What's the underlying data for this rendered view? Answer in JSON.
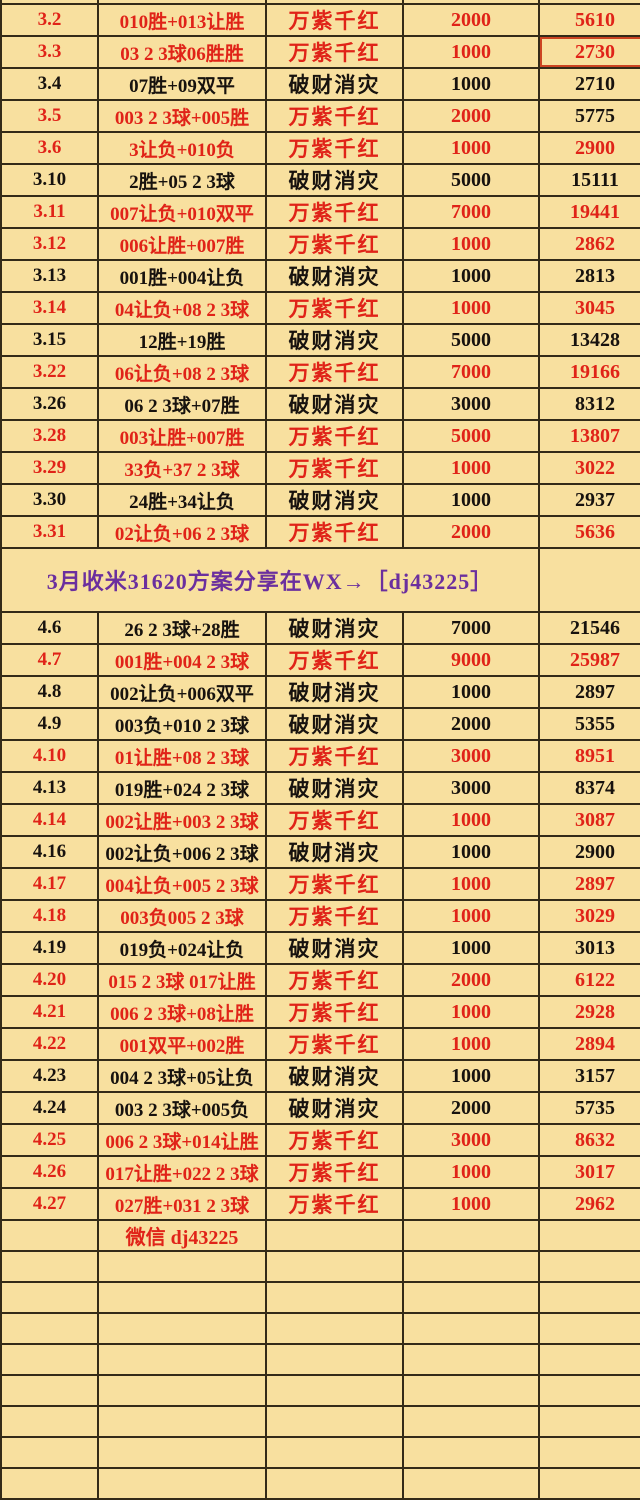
{
  "colors": {
    "background": "#f8e09f",
    "grid_line": "#332a18",
    "win_text": "#e02318",
    "loss_text": "#17120e",
    "banner_text": "#6b2f9e",
    "highlight_border": "#cc4422"
  },
  "table": {
    "win_label": "万紫千红",
    "loss_label": "破财消灾",
    "sections": [
      {
        "kind": "rows",
        "rows": [
          {
            "date": "3.2",
            "plan": "010胜+013让胜",
            "result": "万紫千红",
            "stake": "2000",
            "payout": "5610",
            "color": "red"
          },
          {
            "date": "3.3",
            "plan": "03 2 3球06胜胜",
            "result": "万紫千红",
            "stake": "1000",
            "payout": "2730",
            "color": "red",
            "payout_highlight": true
          },
          {
            "date": "3.4",
            "plan": "07胜+09双平",
            "result": "破财消灾",
            "stake": "1000",
            "payout": "2710",
            "color": "black"
          },
          {
            "date": "3.5",
            "plan": "003 2 3球+005胜",
            "result": "万紫千红",
            "stake": "2000",
            "payout": "5775",
            "color": "red",
            "payout_color": "black"
          },
          {
            "date": "3.6",
            "plan": "3让负+010负",
            "result": "万紫千红",
            "stake": "1000",
            "payout": "2900",
            "color": "red"
          },
          {
            "date": "3.10",
            "plan": "2胜+05 2 3球",
            "result": "破财消灾",
            "stake": "5000",
            "payout": "15111",
            "color": "black"
          },
          {
            "date": "3.11",
            "plan": "007让负+010双平",
            "result": "万紫千红",
            "stake": "7000",
            "payout": "19441",
            "color": "red"
          },
          {
            "date": "3.12",
            "plan": "006让胜+007胜",
            "result": "万紫千红",
            "stake": "1000",
            "payout": "2862",
            "color": "red"
          },
          {
            "date": "3.13",
            "plan": "001胜+004让负",
            "result": "破财消灾",
            "stake": "1000",
            "payout": "2813",
            "color": "black"
          },
          {
            "date": "3.14",
            "plan": "04让负+08 2 3球",
            "result": "万紫千红",
            "stake": "1000",
            "payout": "3045",
            "color": "red"
          },
          {
            "date": "3.15",
            "plan": "12胜+19胜",
            "result": "破财消灾",
            "stake": "5000",
            "payout": "13428",
            "color": "black"
          },
          {
            "date": "3.22",
            "plan": "06让负+08 2 3球",
            "result": "万紫千红",
            "stake": "7000",
            "payout": "19166",
            "color": "red"
          },
          {
            "date": "3.26",
            "plan": "06 2 3球+07胜",
            "result": "破财消灾",
            "stake": "3000",
            "payout": "8312",
            "color": "black"
          },
          {
            "date": "3.28",
            "plan": "003让胜+007胜",
            "result": "万紫千红",
            "stake": "5000",
            "payout": "13807",
            "color": "red"
          },
          {
            "date": "3.29",
            "plan": "33负+37 2 3球",
            "result": "万紫千红",
            "stake": "1000",
            "payout": "3022",
            "color": "red"
          },
          {
            "date": "3.30",
            "plan": "24胜+34让负",
            "result": "破财消灾",
            "stake": "1000",
            "payout": "2937",
            "color": "black"
          },
          {
            "date": "3.31",
            "plan": "02让负+06 2 3球",
            "result": "万紫千红",
            "stake": "2000",
            "payout": "5636",
            "color": "red"
          }
        ]
      },
      {
        "kind": "banner",
        "text": "3月收米31620方案分享在WX→［dj43225］"
      },
      {
        "kind": "rows",
        "rows": [
          {
            "date": "4.6",
            "plan": "26 2 3球+28胜",
            "result": "破财消灾",
            "stake": "7000",
            "payout": "21546",
            "color": "black"
          },
          {
            "date": "4.7",
            "plan": "001胜+004 2 3球",
            "result": "万紫千红",
            "stake": "9000",
            "payout": "25987",
            "color": "red"
          },
          {
            "date": "4.8",
            "plan": "002让负+006双平",
            "result": "破财消灾",
            "stake": "1000",
            "payout": "2897",
            "color": "black"
          },
          {
            "date": "4.9",
            "plan": "003负+010 2 3球",
            "result": "破财消灾",
            "stake": "2000",
            "payout": "5355",
            "color": "black"
          },
          {
            "date": "4.10",
            "plan": "01让胜+08 2 3球",
            "result": "万紫千红",
            "stake": "3000",
            "payout": "8951",
            "color": "red"
          },
          {
            "date": "4.13",
            "plan": "019胜+024 2 3球",
            "result": "破财消灾",
            "stake": "3000",
            "payout": "8374",
            "color": "black"
          },
          {
            "date": "4.14",
            "plan": "002让胜+003 2 3球",
            "result": "万紫千红",
            "stake": "1000",
            "payout": "3087",
            "color": "red"
          },
          {
            "date": "4.16",
            "plan": "002让负+006 2 3球",
            "result": "破财消灾",
            "stake": "1000",
            "payout": "2900",
            "color": "black"
          },
          {
            "date": "4.17",
            "plan": "004让负+005 2 3球",
            "result": "万紫千红",
            "stake": "1000",
            "payout": "2897",
            "color": "red"
          },
          {
            "date": "4.18",
            "plan": "003负005 2 3球",
            "result": "万紫千红",
            "stake": "1000",
            "payout": "3029",
            "color": "red"
          },
          {
            "date": "4.19",
            "plan": "019负+024让负",
            "result": "破财消灾",
            "stake": "1000",
            "payout": "3013",
            "color": "black"
          },
          {
            "date": "4.20",
            "plan": "015 2 3球 017让胜",
            "result": "万紫千红",
            "stake": "2000",
            "payout": "6122",
            "color": "red"
          },
          {
            "date": "4.21",
            "plan": "006 2 3球+08让胜",
            "result": "万紫千红",
            "stake": "1000",
            "payout": "2928",
            "color": "red"
          },
          {
            "date": "4.22",
            "plan": "001双平+002胜",
            "result": "万紫千红",
            "stake": "1000",
            "payout": "2894",
            "color": "red"
          },
          {
            "date": "4.23",
            "plan": "004 2 3球+05让负",
            "result": "破财消灾",
            "stake": "1000",
            "payout": "3157",
            "color": "black"
          },
          {
            "date": "4.24",
            "plan": "003 2 3球+005负",
            "result": "破财消灾",
            "stake": "2000",
            "payout": "5735",
            "color": "black"
          },
          {
            "date": "4.25",
            "plan": "006 2 3球+014让胜",
            "result": "万紫千红",
            "stake": "3000",
            "payout": "8632",
            "color": "red"
          },
          {
            "date": "4.26",
            "plan": "017让胜+022 2 3球",
            "result": "万紫千红",
            "stake": "1000",
            "payout": "3017",
            "color": "red"
          },
          {
            "date": "4.27",
            "plan": "027胜+031 2 3球",
            "result": "万紫千红",
            "stake": "1000",
            "payout": "2962",
            "color": "red"
          }
        ]
      },
      {
        "kind": "footer",
        "text": "微信 dj43225"
      },
      {
        "kind": "empty",
        "count": 8
      }
    ]
  }
}
